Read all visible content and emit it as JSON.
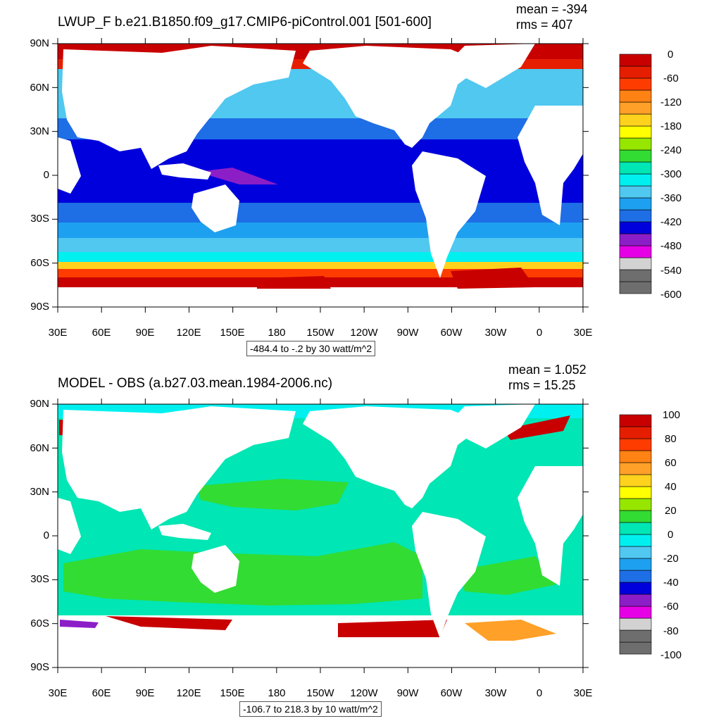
{
  "colors": {
    "land": "#ffffff",
    "colorbar": [
      "#6e6e6e",
      "#d2d2d2",
      "#e600e6",
      "#8c1ec8",
      "#0000dc",
      "#1e6ee6",
      "#1ea0f0",
      "#50c8f0",
      "#00f0f0",
      "#00e6b4",
      "#32dc32",
      "#96e600",
      "#ffff00",
      "#ffd21e",
      "#ffa028",
      "#ff8214",
      "#ff3c00",
      "#e61e00",
      "#c80000"
    ]
  },
  "panels": [
    {
      "title": "LWUP_F b.e21.B1850.f09_g17.CMIP6-piControl.001 [501-600]",
      "mean": "mean = -394",
      "rms": "rms = 407",
      "range": "-484.4 to -.2 by 30 watt/m^2",
      "colorbar_labels": [
        "0",
        "-60",
        "-120",
        "-180",
        "-240",
        "-300",
        "-360",
        "-420",
        "-480",
        "-540",
        "-600"
      ]
    },
    {
      "title": "MODEL - OBS (a.b27.03.mean.1984-2006.nc)",
      "mean": "mean = 1.052",
      "rms": "rms = 15.25",
      "range": "-106.7 to 218.3 by 10 watt/m^2",
      "colorbar_labels": [
        "100",
        "80",
        "60",
        "40",
        "20",
        "0",
        "-20",
        "-40",
        "-60",
        "-80",
        "-100"
      ]
    }
  ],
  "lat_labels": [
    "90N",
    "60N",
    "30N",
    "0",
    "30S",
    "60S",
    "90S"
  ],
  "lon_labels": [
    "30E",
    "60E",
    "90E",
    "120E",
    "150E",
    "180",
    "150W",
    "120W",
    "90W",
    "60W",
    "30W",
    "0",
    "30E"
  ]
}
